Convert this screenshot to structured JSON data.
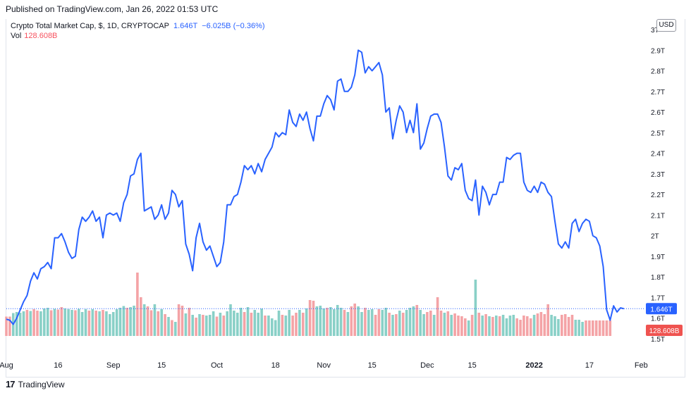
{
  "header": {
    "published": "Published on TradingView.com, Jan 26, 2022 01:53 UTC"
  },
  "legend": {
    "symbol": "Crypto Total Market Cap, $, 1D, CRYPTOCAP",
    "last": "1.646T",
    "change": "−6.025B (−0.36%)",
    "vol_label": "Vol",
    "vol_value": "128.608B"
  },
  "currency": "USD",
  "footer": {
    "brand": "TradingView",
    "logo": "17"
  },
  "colors": {
    "line": "#2962ff",
    "vol_up": "#89d0c7",
    "vol_down": "#f4a3a6",
    "badge_vol": "#ef5350"
  },
  "chart_data": {
    "type": "line",
    "title": "Crypto Total Market Cap, $, 1D, CRYPTOCAP",
    "x_start": "2021-07-25",
    "x_end": "2022-01-25",
    "x_tick_labels": [
      {
        "day": 0,
        "label": "Aug"
      },
      {
        "day": 15,
        "label": "16"
      },
      {
        "day": 31,
        "label": "Sep"
      },
      {
        "day": 45,
        "label": "15"
      },
      {
        "day": 61,
        "label": "Oct"
      },
      {
        "day": 78,
        "label": "18"
      },
      {
        "day": 92,
        "label": "Nov"
      },
      {
        "day": 106,
        "label": "15"
      },
      {
        "day": 122,
        "label": "Dec"
      },
      {
        "day": 135,
        "label": "15"
      },
      {
        "day": 153,
        "label": "2022"
      },
      {
        "day": 169,
        "label": "17"
      },
      {
        "day": 184,
        "label": "Feb"
      }
    ],
    "y_tick_labels": [
      "1.5T",
      "1.6T",
      "1.7T",
      "1.8T",
      "1.9T",
      "2T",
      "2.1T",
      "2.2T",
      "2.3T",
      "2.4T",
      "2.5T",
      "2.6T",
      "2.7T",
      "2.8T",
      "2.9T",
      "3T"
    ],
    "ylim": [
      1.5,
      3.0
    ],
    "unit": "T USD",
    "last_value_label": "1.646T",
    "last_volume_label": "128.608B",
    "price_series": [
      1.595,
      1.59,
      1.57,
      1.6,
      1.64,
      1.68,
      1.71,
      1.78,
      1.82,
      1.79,
      1.84,
      1.85,
      1.87,
      1.84,
      1.99,
      1.99,
      2.01,
      1.97,
      1.92,
      1.89,
      1.9,
      2.03,
      2.09,
      2.07,
      2.09,
      2.12,
      2.07,
      2.09,
      1.99,
      2.1,
      2.11,
      2.1,
      2.11,
      2.07,
      2.16,
      2.2,
      2.29,
      2.3,
      2.37,
      2.4,
      2.12,
      2.13,
      2.14,
      2.08,
      2.1,
      2.15,
      2.08,
      2.11,
      2.22,
      2.2,
      2.14,
      2.17,
      1.96,
      1.91,
      1.83,
      1.99,
      2.06,
      1.97,
      1.93,
      1.95,
      1.9,
      1.85,
      1.87,
      1.97,
      2.15,
      2.15,
      2.19,
      2.2,
      2.26,
      2.34,
      2.32,
      2.34,
      2.3,
      2.35,
      2.31,
      2.37,
      2.4,
      2.43,
      2.5,
      2.48,
      2.5,
      2.49,
      2.61,
      2.55,
      2.53,
      2.59,
      2.56,
      2.6,
      2.52,
      2.46,
      2.58,
      2.58,
      2.64,
      2.68,
      2.66,
      2.61,
      2.75,
      2.76,
      2.7,
      2.7,
      2.72,
      2.78,
      2.9,
      2.89,
      2.79,
      2.82,
      2.8,
      2.82,
      2.84,
      2.78,
      2.6,
      2.62,
      2.47,
      2.56,
      2.63,
      2.6,
      2.5,
      2.56,
      2.5,
      2.64,
      2.42,
      2.45,
      2.52,
      2.58,
      2.59,
      2.59,
      2.55,
      2.43,
      2.29,
      2.27,
      2.33,
      2.32,
      2.35,
      2.22,
      2.18,
      2.17,
      2.27,
      2.1,
      2.24,
      2.21,
      2.15,
      2.2,
      2.2,
      2.26,
      2.26,
      2.38,
      2.37,
      2.39,
      2.4,
      2.4,
      2.26,
      2.22,
      2.21,
      2.24,
      2.21,
      2.26,
      2.25,
      2.21,
      2.19,
      2.07,
      1.96,
      1.94,
      1.97,
      1.94,
      2.06,
      2.08,
      2.02,
      2.06,
      2.08,
      2.07,
      2.0,
      1.99,
      1.95,
      1.85,
      1.64,
      1.59,
      1.66,
      1.63,
      1.65,
      1.646
    ],
    "volume_series": [
      {
        "v": 0.55,
        "d": "down"
      },
      {
        "v": 0.55,
        "d": "down"
      },
      {
        "v": 0.65,
        "d": "up"
      },
      {
        "v": 0.68,
        "d": "up"
      },
      {
        "v": 0.66,
        "d": "up"
      },
      {
        "v": 0.7,
        "d": "up"
      },
      {
        "v": 0.74,
        "d": "down"
      },
      {
        "v": 0.71,
        "d": "up"
      },
      {
        "v": 0.76,
        "d": "down"
      },
      {
        "v": 0.72,
        "d": "down"
      },
      {
        "v": 0.7,
        "d": "up"
      },
      {
        "v": 0.78,
        "d": "up"
      },
      {
        "v": 0.8,
        "d": "up"
      },
      {
        "v": 0.73,
        "d": "down"
      },
      {
        "v": 0.77,
        "d": "up"
      },
      {
        "v": 0.75,
        "d": "down"
      },
      {
        "v": 0.82,
        "d": "down"
      },
      {
        "v": 0.78,
        "d": "up"
      },
      {
        "v": 0.76,
        "d": "up"
      },
      {
        "v": 0.74,
        "d": "up"
      },
      {
        "v": 0.73,
        "d": "down"
      },
      {
        "v": 0.77,
        "d": "up"
      },
      {
        "v": 0.68,
        "d": "up"
      },
      {
        "v": 0.76,
        "d": "up"
      },
      {
        "v": 0.72,
        "d": "down"
      },
      {
        "v": 0.76,
        "d": "up"
      },
      {
        "v": 0.72,
        "d": "down"
      },
      {
        "v": 0.7,
        "d": "up"
      },
      {
        "v": 0.74,
        "d": "down"
      },
      {
        "v": 0.7,
        "d": "up"
      },
      {
        "v": 0.62,
        "d": "up"
      },
      {
        "v": 0.68,
        "d": "up"
      },
      {
        "v": 0.76,
        "d": "up"
      },
      {
        "v": 0.8,
        "d": "up"
      },
      {
        "v": 0.85,
        "d": "up"
      },
      {
        "v": 0.8,
        "d": "down"
      },
      {
        "v": 0.82,
        "d": "up"
      },
      {
        "v": 0.86,
        "d": "up"
      },
      {
        "v": 1.8,
        "d": "down"
      },
      {
        "v": 1.1,
        "d": "down"
      },
      {
        "v": 0.9,
        "d": "up"
      },
      {
        "v": 0.84,
        "d": "down"
      },
      {
        "v": 0.73,
        "d": "down"
      },
      {
        "v": 0.9,
        "d": "up"
      },
      {
        "v": 0.7,
        "d": "down"
      },
      {
        "v": 0.76,
        "d": "up"
      },
      {
        "v": 0.62,
        "d": "down"
      },
      {
        "v": 0.54,
        "d": "up"
      },
      {
        "v": 0.45,
        "d": "down"
      },
      {
        "v": 0.4,
        "d": "up"
      },
      {
        "v": 0.9,
        "d": "down"
      },
      {
        "v": 0.86,
        "d": "down"
      },
      {
        "v": 0.64,
        "d": "up"
      },
      {
        "v": 0.8,
        "d": "down"
      },
      {
        "v": 0.6,
        "d": "up"
      },
      {
        "v": 0.52,
        "d": "down"
      },
      {
        "v": 0.62,
        "d": "up"
      },
      {
        "v": 0.6,
        "d": "down"
      },
      {
        "v": 0.58,
        "d": "up"
      },
      {
        "v": 0.6,
        "d": "up"
      },
      {
        "v": 0.7,
        "d": "up"
      },
      {
        "v": 0.55,
        "d": "down"
      },
      {
        "v": 0.66,
        "d": "up"
      },
      {
        "v": 0.58,
        "d": "down"
      },
      {
        "v": 0.7,
        "d": "up"
      },
      {
        "v": 0.9,
        "d": "up"
      },
      {
        "v": 0.72,
        "d": "up"
      },
      {
        "v": 0.66,
        "d": "up"
      },
      {
        "v": 0.8,
        "d": "up"
      },
      {
        "v": 0.68,
        "d": "down"
      },
      {
        "v": 0.82,
        "d": "up"
      },
      {
        "v": 0.66,
        "d": "down"
      },
      {
        "v": 0.74,
        "d": "up"
      },
      {
        "v": 0.66,
        "d": "up"
      },
      {
        "v": 0.78,
        "d": "up"
      },
      {
        "v": 0.58,
        "d": "down"
      },
      {
        "v": 0.58,
        "d": "up"
      },
      {
        "v": 0.5,
        "d": "up"
      },
      {
        "v": 0.45,
        "d": "up"
      },
      {
        "v": 0.72,
        "d": "up"
      },
      {
        "v": 0.6,
        "d": "down"
      },
      {
        "v": 0.58,
        "d": "up"
      },
      {
        "v": 0.74,
        "d": "up"
      },
      {
        "v": 0.58,
        "d": "down"
      },
      {
        "v": 0.66,
        "d": "down"
      },
      {
        "v": 0.74,
        "d": "up"
      },
      {
        "v": 0.66,
        "d": "down"
      },
      {
        "v": 0.78,
        "d": "up"
      },
      {
        "v": 1.02,
        "d": "down"
      },
      {
        "v": 1.0,
        "d": "down"
      },
      {
        "v": 0.84,
        "d": "up"
      },
      {
        "v": 0.86,
        "d": "up"
      },
      {
        "v": 0.78,
        "d": "up"
      },
      {
        "v": 0.8,
        "d": "down"
      },
      {
        "v": 0.82,
        "d": "up"
      },
      {
        "v": 0.76,
        "d": "up"
      },
      {
        "v": 0.88,
        "d": "up"
      },
      {
        "v": 0.8,
        "d": "up"
      },
      {
        "v": 0.74,
        "d": "down"
      },
      {
        "v": 0.68,
        "d": "up"
      },
      {
        "v": 0.84,
        "d": "down"
      },
      {
        "v": 0.92,
        "d": "down"
      },
      {
        "v": 0.84,
        "d": "up"
      },
      {
        "v": 0.68,
        "d": "up"
      },
      {
        "v": 0.8,
        "d": "down"
      },
      {
        "v": 0.74,
        "d": "up"
      },
      {
        "v": 0.76,
        "d": "up"
      },
      {
        "v": 0.6,
        "d": "down"
      },
      {
        "v": 0.76,
        "d": "down"
      },
      {
        "v": 0.74,
        "d": "up"
      },
      {
        "v": 0.8,
        "d": "up"
      },
      {
        "v": 0.66,
        "d": "down"
      },
      {
        "v": 0.6,
        "d": "up"
      },
      {
        "v": 0.62,
        "d": "down"
      },
      {
        "v": 0.72,
        "d": "up"
      },
      {
        "v": 0.66,
        "d": "down"
      },
      {
        "v": 0.74,
        "d": "up"
      },
      {
        "v": 0.8,
        "d": "up"
      },
      {
        "v": 0.84,
        "d": "up"
      },
      {
        "v": 0.88,
        "d": "down"
      },
      {
        "v": 0.74,
        "d": "up"
      },
      {
        "v": 0.62,
        "d": "up"
      },
      {
        "v": 0.68,
        "d": "down"
      },
      {
        "v": 0.72,
        "d": "down"
      },
      {
        "v": 0.6,
        "d": "up"
      },
      {
        "v": 1.1,
        "d": "down"
      },
      {
        "v": 0.72,
        "d": "down"
      },
      {
        "v": 0.66,
        "d": "up"
      },
      {
        "v": 0.7,
        "d": "down"
      },
      {
        "v": 0.6,
        "d": "up"
      },
      {
        "v": 0.64,
        "d": "down"
      },
      {
        "v": 0.58,
        "d": "down"
      },
      {
        "v": 0.56,
        "d": "down"
      },
      {
        "v": 0.5,
        "d": "down"
      },
      {
        "v": 0.44,
        "d": "up"
      },
      {
        "v": 0.6,
        "d": "down"
      },
      {
        "v": 1.6,
        "d": "up"
      },
      {
        "v": 0.66,
        "d": "down"
      },
      {
        "v": 0.58,
        "d": "up"
      },
      {
        "v": 0.62,
        "d": "down"
      },
      {
        "v": 0.56,
        "d": "up"
      },
      {
        "v": 0.54,
        "d": "down"
      },
      {
        "v": 0.58,
        "d": "up"
      },
      {
        "v": 0.56,
        "d": "down"
      },
      {
        "v": 0.6,
        "d": "up"
      },
      {
        "v": 0.5,
        "d": "up"
      },
      {
        "v": 0.58,
        "d": "up"
      },
      {
        "v": 0.6,
        "d": "up"
      },
      {
        "v": 0.5,
        "d": "down"
      },
      {
        "v": 0.46,
        "d": "down"
      },
      {
        "v": 0.58,
        "d": "down"
      },
      {
        "v": 0.56,
        "d": "down"
      },
      {
        "v": 0.5,
        "d": "down"
      },
      {
        "v": 0.6,
        "d": "up"
      },
      {
        "v": 0.64,
        "d": "down"
      },
      {
        "v": 0.68,
        "d": "down"
      },
      {
        "v": 0.62,
        "d": "down"
      },
      {
        "v": 0.9,
        "d": "down"
      },
      {
        "v": 0.6,
        "d": "up"
      },
      {
        "v": 0.56,
        "d": "up"
      },
      {
        "v": 0.48,
        "d": "up"
      },
      {
        "v": 0.6,
        "d": "down"
      },
      {
        "v": 0.62,
        "d": "down"
      },
      {
        "v": 0.54,
        "d": "down"
      },
      {
        "v": 0.6,
        "d": "down"
      },
      {
        "v": 0.46,
        "d": "up"
      },
      {
        "v": 0.46,
        "d": "up"
      },
      {
        "v": 0.4,
        "d": "up"
      },
      {
        "v": 0.44,
        "d": "down"
      },
      {
        "v": 0.44,
        "d": "down"
      },
      {
        "v": 0.44,
        "d": "down"
      },
      {
        "v": 0.44,
        "d": "down"
      },
      {
        "v": 0.44,
        "d": "down"
      },
      {
        "v": 0.44,
        "d": "down"
      },
      {
        "v": 0.44,
        "d": "down"
      },
      {
        "v": 0.44,
        "d": "down"
      }
    ]
  }
}
